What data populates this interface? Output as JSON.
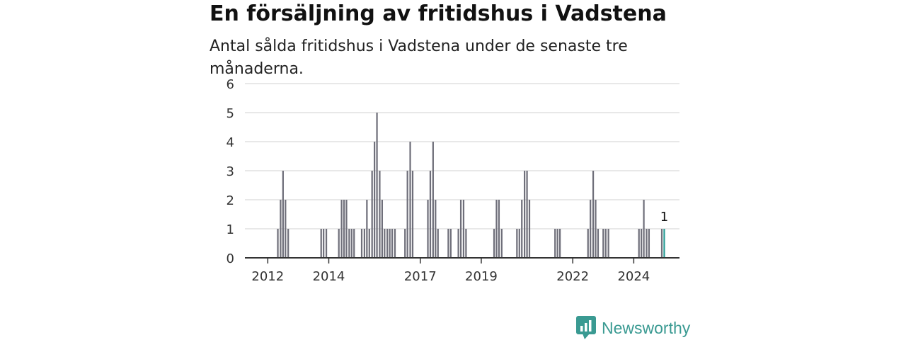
{
  "title": "En försäljning av fritidshus i Vadstena",
  "subtitle": "Antal sålda fritidshus i Vadstena under de senaste tre månaderna.",
  "brand": {
    "name": "Newsworthy",
    "icon": "newsworthy-logo-icon"
  },
  "colors": {
    "bar": "#6f6f7a",
    "highlight": "#2a9d96",
    "grid": "#d9d9d9",
    "axis": "#333333"
  },
  "chart_data": {
    "type": "bar",
    "ylim": [
      0,
      6
    ],
    "yticks": [
      "0",
      "1",
      "2",
      "3",
      "4",
      "5",
      "6"
    ],
    "xlim": [
      2011.25,
      2025.5
    ],
    "xticks": [
      {
        "value": 2012.0,
        "label": "2012"
      },
      {
        "value": 2014.0,
        "label": "2014"
      },
      {
        "value": 2017.0,
        "label": "2017"
      },
      {
        "value": 2019.0,
        "label": "2019"
      },
      {
        "value": 2022.0,
        "label": "2022"
      },
      {
        "value": 2024.0,
        "label": "2024"
      }
    ],
    "grid": true,
    "bars": [
      {
        "x": 2012.33,
        "v": 1
      },
      {
        "x": 2012.42,
        "v": 2
      },
      {
        "x": 2012.5,
        "v": 3
      },
      {
        "x": 2012.58,
        "v": 2
      },
      {
        "x": 2012.67,
        "v": 1
      },
      {
        "x": 2013.75,
        "v": 1
      },
      {
        "x": 2013.83,
        "v": 1
      },
      {
        "x": 2013.92,
        "v": 1
      },
      {
        "x": 2014.33,
        "v": 1
      },
      {
        "x": 2014.42,
        "v": 2
      },
      {
        "x": 2014.5,
        "v": 2
      },
      {
        "x": 2014.58,
        "v": 2
      },
      {
        "x": 2014.67,
        "v": 1
      },
      {
        "x": 2014.75,
        "v": 1
      },
      {
        "x": 2014.83,
        "v": 1
      },
      {
        "x": 2015.08,
        "v": 1
      },
      {
        "x": 2015.17,
        "v": 1
      },
      {
        "x": 2015.25,
        "v": 2
      },
      {
        "x": 2015.33,
        "v": 1
      },
      {
        "x": 2015.42,
        "v": 3
      },
      {
        "x": 2015.5,
        "v": 4
      },
      {
        "x": 2015.58,
        "v": 5
      },
      {
        "x": 2015.67,
        "v": 3
      },
      {
        "x": 2015.75,
        "v": 2
      },
      {
        "x": 2015.83,
        "v": 1
      },
      {
        "x": 2015.92,
        "v": 1
      },
      {
        "x": 2016.0,
        "v": 1
      },
      {
        "x": 2016.08,
        "v": 1
      },
      {
        "x": 2016.17,
        "v": 1
      },
      {
        "x": 2016.5,
        "v": 1
      },
      {
        "x": 2016.58,
        "v": 3
      },
      {
        "x": 2016.67,
        "v": 4
      },
      {
        "x": 2016.75,
        "v": 3
      },
      {
        "x": 2017.25,
        "v": 2
      },
      {
        "x": 2017.33,
        "v": 3
      },
      {
        "x": 2017.42,
        "v": 4
      },
      {
        "x": 2017.5,
        "v": 2
      },
      {
        "x": 2017.58,
        "v": 1
      },
      {
        "x": 2017.92,
        "v": 1
      },
      {
        "x": 2018.0,
        "v": 1
      },
      {
        "x": 2018.25,
        "v": 1
      },
      {
        "x": 2018.33,
        "v": 2
      },
      {
        "x": 2018.42,
        "v": 2
      },
      {
        "x": 2018.5,
        "v": 1
      },
      {
        "x": 2019.42,
        "v": 1
      },
      {
        "x": 2019.5,
        "v": 2
      },
      {
        "x": 2019.58,
        "v": 2
      },
      {
        "x": 2019.67,
        "v": 1
      },
      {
        "x": 2020.17,
        "v": 1
      },
      {
        "x": 2020.25,
        "v": 1
      },
      {
        "x": 2020.33,
        "v": 2
      },
      {
        "x": 2020.42,
        "v": 3
      },
      {
        "x": 2020.5,
        "v": 3
      },
      {
        "x": 2020.58,
        "v": 2
      },
      {
        "x": 2021.42,
        "v": 1
      },
      {
        "x": 2021.5,
        "v": 1
      },
      {
        "x": 2021.58,
        "v": 1
      },
      {
        "x": 2022.5,
        "v": 1
      },
      {
        "x": 2022.58,
        "v": 2
      },
      {
        "x": 2022.67,
        "v": 3
      },
      {
        "x": 2022.75,
        "v": 2
      },
      {
        "x": 2022.83,
        "v": 1
      },
      {
        "x": 2023.0,
        "v": 1
      },
      {
        "x": 2023.08,
        "v": 1
      },
      {
        "x": 2023.17,
        "v": 1
      },
      {
        "x": 2024.17,
        "v": 1
      },
      {
        "x": 2024.25,
        "v": 1
      },
      {
        "x": 2024.33,
        "v": 2
      },
      {
        "x": 2024.42,
        "v": 1
      },
      {
        "x": 2024.5,
        "v": 1
      },
      {
        "x": 2024.92,
        "v": 1
      },
      {
        "x": 2025.0,
        "v": 1,
        "highlight": true,
        "label": "1"
      }
    ]
  }
}
